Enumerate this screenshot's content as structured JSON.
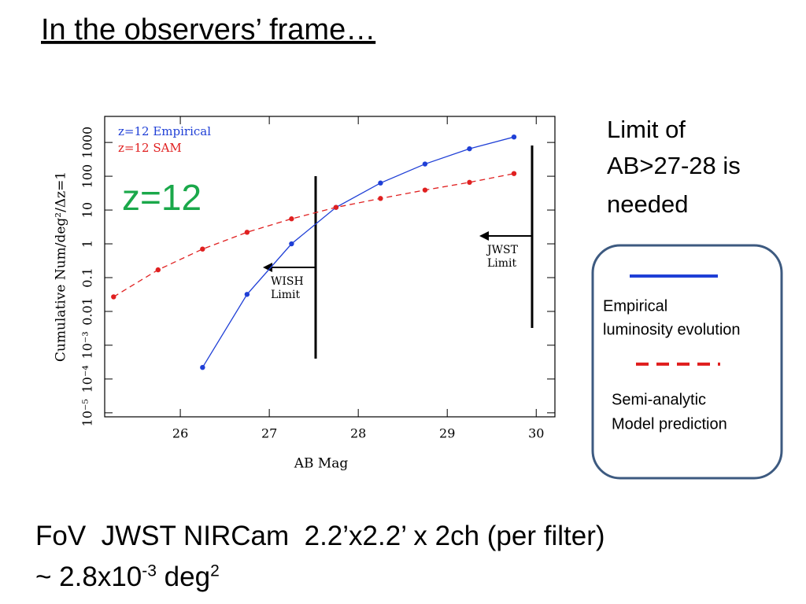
{
  "header": {
    "title": "In the observers’ frame…"
  },
  "chart_data": {
    "type": "line",
    "xlabel": "AB Mag",
    "ylabel": "Cumulative Num/deg²/Δz=1",
    "annotation": "z=12",
    "limits": [
      {
        "label_lines": [
          "WISH",
          "Limit"
        ]
      },
      {
        "label_lines": [
          "JWST",
          "Limit"
        ]
      }
    ],
    "xlim": [
      25.15,
      30.21
    ],
    "xticks": [
      26,
      27,
      28,
      29,
      30
    ],
    "ylim": [
      7.6e-06,
      5900
    ],
    "log_y": true,
    "yticks": [
      {
        "value": 1e-05,
        "label": "10⁻⁵"
      },
      {
        "value": 0.0001,
        "label": "10⁻⁴"
      },
      {
        "value": 0.001,
        "label": "10⁻³"
      },
      0.01,
      0.1,
      1,
      10,
      100,
      1000
    ],
    "series": [
      {
        "name": "z=12 Empirical",
        "color": "#1f3fd6",
        "dashed": false,
        "x": [
          26.25,
          26.75,
          27.25,
          27.75,
          28.25,
          28.75,
          29.25,
          29.75
        ],
        "values": [
          0.00022,
          0.032,
          1.0,
          12,
          63,
          230,
          650,
          1450
        ]
      },
      {
        "name": "z=12 SAM",
        "color": "#e02020",
        "dashed": true,
        "x": [
          25.25,
          25.75,
          26.25,
          26.75,
          27.25,
          27.75,
          28.25,
          28.75,
          29.25,
          29.75
        ],
        "values": [
          0.027,
          0.17,
          0.7,
          2.2,
          5.5,
          12,
          22,
          39,
          66,
          120
        ]
      }
    ]
  },
  "side_note": {
    "lines": [
      "Limit of",
      "AB>27-28 is",
      "needed"
    ]
  },
  "legend_box": {
    "empirical": [
      "Empirical",
      "luminosity evolution"
    ],
    "sam": [
      "Semi-analytic",
      "Model prediction"
    ]
  },
  "footer": {
    "line1": "FoV  JWST NIRCam  2.2’x2.2’ x 2ch (per filter)",
    "line2_parts": [
      "~ 2.8x10",
      "-3",
      " deg",
      "2"
    ]
  }
}
